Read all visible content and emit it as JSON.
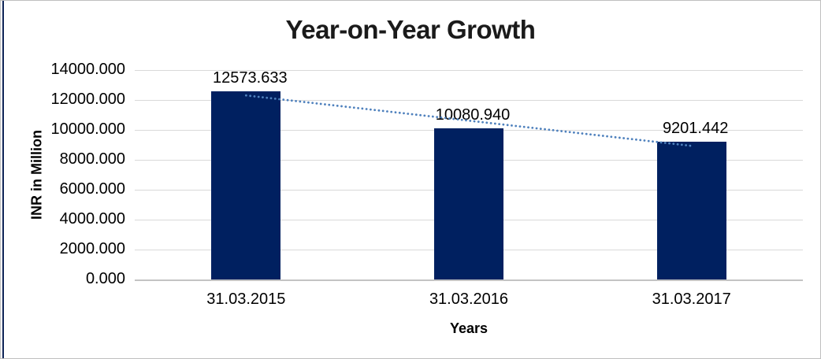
{
  "chart_data": {
    "type": "bar",
    "title": "Year-on-Year Growth",
    "xlabel": "Years",
    "ylabel": "INR in Million",
    "categories": [
      "31.03.2015",
      "31.03.2016",
      "31.03.2017"
    ],
    "values": [
      12573.633,
      10080.94,
      9201.442
    ],
    "data_labels": [
      "12573.633",
      "10080.940",
      "9201.442"
    ],
    "ylim": [
      0,
      14000
    ],
    "ytick_step": 2000,
    "ytick_labels": [
      "0.000",
      "2000.000",
      "4000.000",
      "6000.000",
      "8000.000",
      "10000.000",
      "12000.000",
      "14000.000"
    ],
    "grid": true,
    "legend": "none",
    "trendline": "linear-dotted",
    "colors": {
      "bar": "#002060",
      "trendline": "#4F81BD",
      "gridline": "#d9d9d9",
      "axis_line": "#c3c3c3",
      "text": "#000000",
      "left_edge_line": "#0f2557"
    }
  }
}
